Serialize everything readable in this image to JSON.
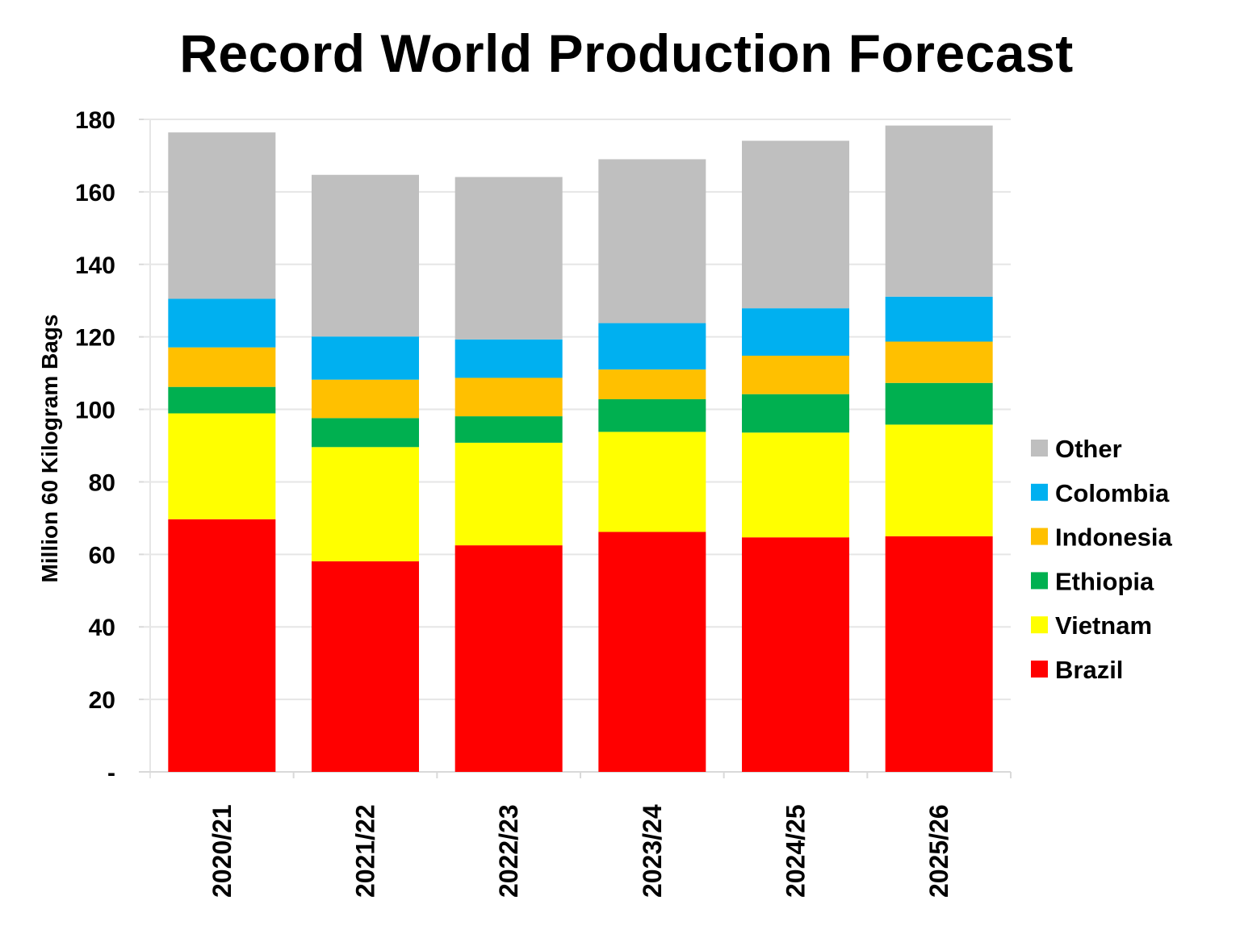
{
  "chart_data": {
    "type": "bar",
    "stacked": true,
    "title": "Record World Production Forecast",
    "xlabel": "",
    "ylabel": "Million 60 Kilogram Bags",
    "ylim": [
      0,
      180
    ],
    "yticks": [
      0,
      20,
      40,
      60,
      80,
      100,
      120,
      140,
      160,
      180
    ],
    "ytick_labels": [
      "-",
      "20",
      "40",
      "60",
      "80",
      "100",
      "120",
      "140",
      "160",
      "180"
    ],
    "grid": true,
    "legend_position": "right",
    "categories": [
      "2020/21",
      "2021/22",
      "2022/23",
      "2023/24",
      "2024/25",
      "2025/26"
    ],
    "series": [
      {
        "name": "Brazil",
        "color": "#ff0000",
        "values": [
          69.7,
          58.1,
          62.5,
          66.2,
          64.7,
          65.0
        ]
      },
      {
        "name": "Vietnam",
        "color": "#ffff00",
        "values": [
          29.2,
          31.5,
          28.3,
          27.6,
          28.9,
          30.8
        ]
      },
      {
        "name": "Ethiopia",
        "color": "#00b050",
        "values": [
          7.3,
          8.0,
          7.3,
          9.0,
          10.6,
          11.5
        ]
      },
      {
        "name": "Indonesia",
        "color": "#ffc000",
        "values": [
          10.9,
          10.6,
          10.6,
          8.2,
          10.6,
          11.4
        ]
      },
      {
        "name": "Colombia",
        "color": "#00b0f0",
        "values": [
          13.4,
          11.9,
          10.6,
          12.8,
          13.1,
          12.4
        ]
      },
      {
        "name": "Other",
        "color": "#bfbfbf",
        "values": [
          45.9,
          44.6,
          44.8,
          45.2,
          46.2,
          47.2
        ]
      }
    ],
    "legend_order": [
      "Other",
      "Colombia",
      "Indonesia",
      "Ethiopia",
      "Vietnam",
      "Brazil"
    ]
  }
}
